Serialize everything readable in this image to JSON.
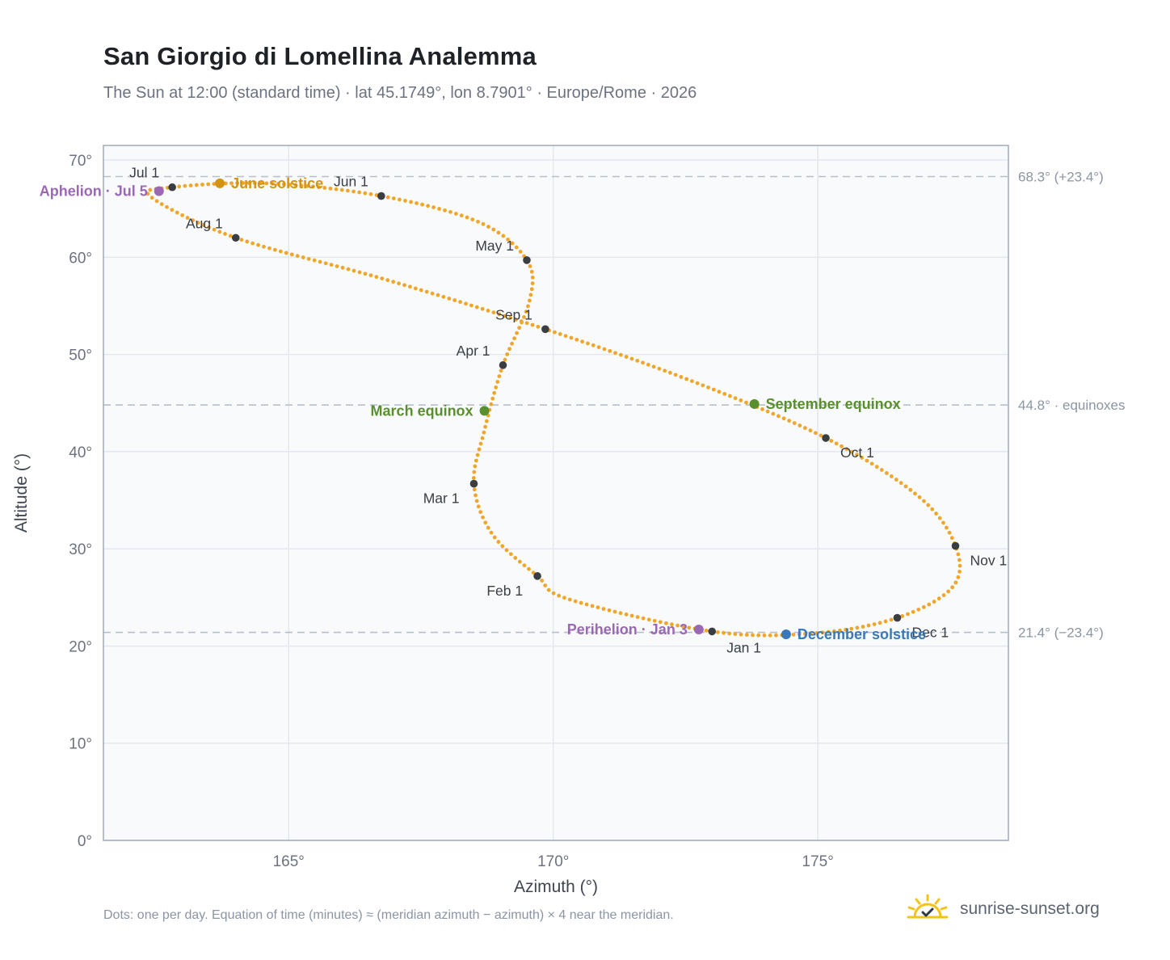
{
  "title": "San Giorgio di Lomellina Analemma",
  "subtitle": "The Sun at 12:00 (standard time) · lat 45.1749°, lon 8.7901° · Europe/Rome · 2026",
  "footnote": "Dots: one per day. Equation of time (minutes) ≈ (meridian azimuth − azimuth) × 4 near the meridian.",
  "brand": {
    "name": "sunrise-sunset.org",
    "logo_icon": "sun-check-icon"
  },
  "colors": {
    "path": "#f0a62a",
    "marker": "#3a3d42",
    "equinox": "#5a8f2e",
    "june_solstice": "#d49312",
    "december_solstice": "#3a78b8",
    "apsis": "#9a68b4",
    "plot_bg": "#f8fafc",
    "grid": "#e3e8ee",
    "frame": "#a0aab8",
    "reference_line": "#b6bfca"
  },
  "chart_data": {
    "type": "scatter",
    "xlabel": "Azimuth (°)",
    "ylabel": "Altitude (°)",
    "xlim": [
      161.5,
      178.6
    ],
    "ylim": [
      0,
      71.5
    ],
    "xticks": [
      165,
      170,
      175
    ],
    "xtick_labels": [
      "165°",
      "170°",
      "175°"
    ],
    "yticks": [
      0,
      10,
      20,
      30,
      40,
      50,
      60,
      70
    ],
    "ytick_labels": [
      "0°",
      "10°",
      "20°",
      "30°",
      "40°",
      "50°",
      "60°",
      "70°"
    ],
    "grid": true,
    "reference_lines": [
      {
        "y": 68.3,
        "label": "68.3° (+23.4°)"
      },
      {
        "y": 44.8,
        "label": "44.8° · equinoxes"
      },
      {
        "y": 21.4,
        "label": "21.4° (−23.4°)"
      }
    ],
    "month_points": [
      {
        "label": "Jan 1",
        "x": 173.0,
        "y": 21.5,
        "anchor": "below"
      },
      {
        "label": "Feb 1",
        "x": 169.7,
        "y": 27.2,
        "anchor": "below-left"
      },
      {
        "label": "Mar 1",
        "x": 168.5,
        "y": 36.7,
        "anchor": "below-left"
      },
      {
        "label": "Apr 1",
        "x": 169.05,
        "y": 48.9,
        "anchor": "above-left"
      },
      {
        "label": "May 1",
        "x": 169.5,
        "y": 59.7,
        "anchor": "above-left"
      },
      {
        "label": "Jun 1",
        "x": 166.75,
        "y": 66.3,
        "anchor": "above-left"
      },
      {
        "label": "Jul 1",
        "x": 162.8,
        "y": 67.2,
        "anchor": "above-left"
      },
      {
        "label": "Aug 1",
        "x": 164.0,
        "y": 62.0,
        "anchor": "above-left"
      },
      {
        "label": "Sep 1",
        "x": 169.85,
        "y": 52.6,
        "anchor": "above-left"
      },
      {
        "label": "Oct 1",
        "x": 175.15,
        "y": 41.4,
        "anchor": "below-right"
      },
      {
        "label": "Nov 1",
        "x": 177.6,
        "y": 30.3,
        "anchor": "below-right"
      },
      {
        "label": "Dec 1",
        "x": 176.5,
        "y": 22.9,
        "anchor": "below-right"
      }
    ],
    "events": [
      {
        "label": "June solstice",
        "x": 163.7,
        "y": 67.6,
        "color_key": "june_solstice",
        "side": "right"
      },
      {
        "label": "Aphelion · Jul 5",
        "x": 162.55,
        "y": 66.8,
        "color_key": "apsis",
        "side": "left"
      },
      {
        "label": "March equinox",
        "x": 168.7,
        "y": 44.2,
        "color_key": "equinox",
        "side": "left"
      },
      {
        "label": "September equinox",
        "x": 173.8,
        "y": 44.9,
        "color_key": "equinox",
        "side": "right"
      },
      {
        "label": "Perihelion · Jan 3",
        "x": 172.75,
        "y": 21.7,
        "color_key": "apsis",
        "side": "left"
      },
      {
        "label": "December solstice",
        "x": 174.4,
        "y": 21.2,
        "color_key": "december_solstice",
        "side": "right"
      }
    ],
    "path_knots": [
      {
        "x": 173.0,
        "y": 21.5
      },
      {
        "x": 170.3,
        "y": 24.8
      },
      {
        "x": 169.7,
        "y": 27.2
      },
      {
        "x": 168.85,
        "y": 31.5
      },
      {
        "x": 168.5,
        "y": 36.7
      },
      {
        "x": 168.7,
        "y": 42.2
      },
      {
        "x": 169.05,
        "y": 48.9
      },
      {
        "x": 169.55,
        "y": 55.5
      },
      {
        "x": 169.5,
        "y": 59.7
      },
      {
        "x": 168.6,
        "y": 63.6
      },
      {
        "x": 166.75,
        "y": 66.3
      },
      {
        "x": 164.6,
        "y": 67.6
      },
      {
        "x": 162.8,
        "y": 67.2
      },
      {
        "x": 162.4,
        "y": 66.2
      },
      {
        "x": 164.0,
        "y": 62.0
      },
      {
        "x": 166.9,
        "y": 57.6
      },
      {
        "x": 169.85,
        "y": 52.6
      },
      {
        "x": 172.6,
        "y": 47.3
      },
      {
        "x": 175.15,
        "y": 41.4
      },
      {
        "x": 176.9,
        "y": 35.4
      },
      {
        "x": 177.6,
        "y": 30.3
      },
      {
        "x": 177.55,
        "y": 26.1
      },
      {
        "x": 176.5,
        "y": 22.9
      },
      {
        "x": 174.9,
        "y": 21.3
      },
      {
        "x": 173.0,
        "y": 21.5
      }
    ],
    "days": 365
  }
}
